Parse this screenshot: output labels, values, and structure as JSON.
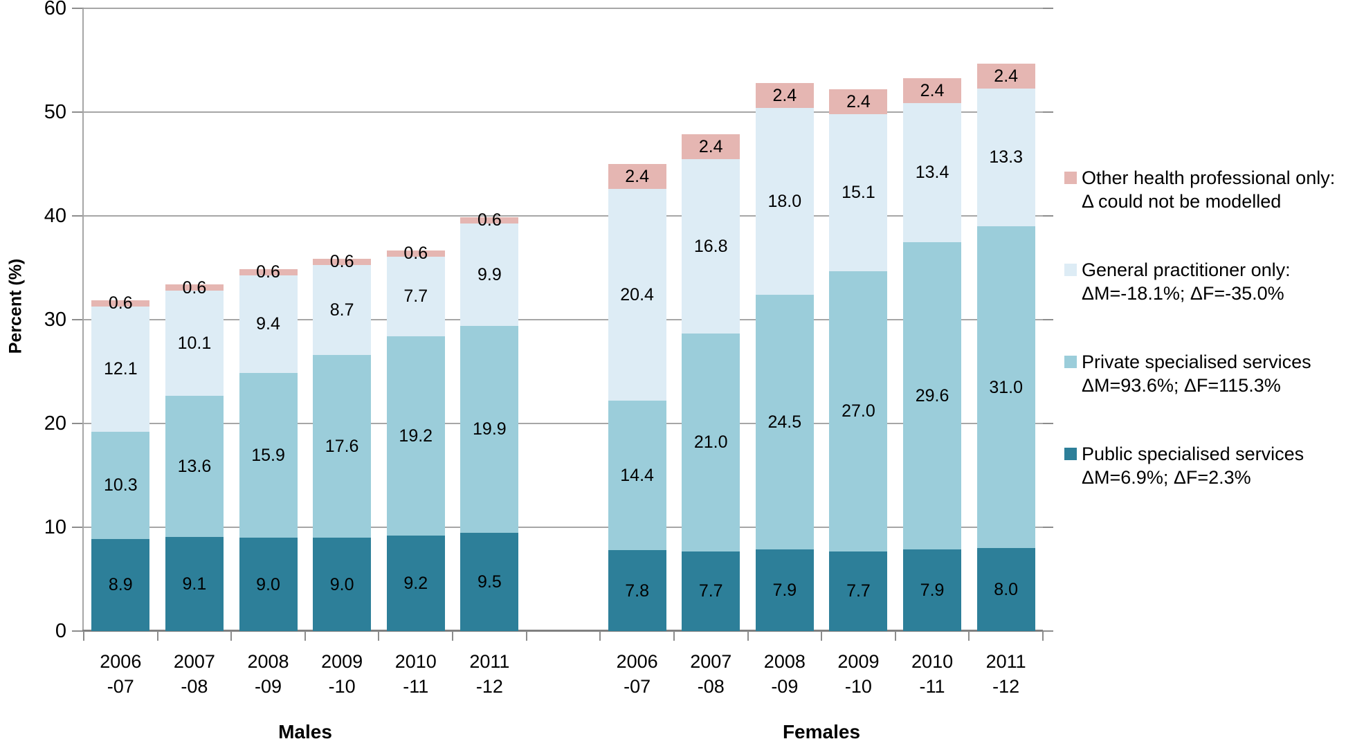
{
  "chart_data": {
    "type": "bar",
    "stacked": true,
    "ylabel": "Percent (%)",
    "ylim": [
      0,
      60
    ],
    "yticks": [
      0,
      10,
      20,
      30,
      40,
      50,
      60
    ],
    "grid": "horizontal",
    "legend_position": "right",
    "categories": [
      {
        "top": "2006",
        "bottom": "-07"
      },
      {
        "top": "2007",
        "bottom": "-08"
      },
      {
        "top": "2008",
        "bottom": "-09"
      },
      {
        "top": "2009",
        "bottom": "-10"
      },
      {
        "top": "2010",
        "bottom": "-11"
      },
      {
        "top": "2011",
        "bottom": "-12"
      }
    ],
    "groups": [
      {
        "label": "Males"
      },
      {
        "label": "Females"
      }
    ],
    "series": [
      {
        "name": "Public specialised services",
        "color": "#2d7f99",
        "males": [
          8.9,
          9.1,
          9.0,
          9.0,
          9.2,
          9.5
        ],
        "females": [
          7.8,
          7.7,
          7.9,
          7.7,
          7.9,
          8.0
        ]
      },
      {
        "name": "Private specialised services",
        "color": "#9bcdda",
        "males": [
          10.3,
          13.6,
          15.9,
          17.6,
          19.2,
          19.9
        ],
        "females": [
          14.4,
          21.0,
          24.5,
          27.0,
          29.6,
          31.0
        ]
      },
      {
        "name": "General practitioner only",
        "color": "#ddecf5",
        "males": [
          12.1,
          10.1,
          9.4,
          8.7,
          7.7,
          9.9
        ],
        "females": [
          20.4,
          16.8,
          18.0,
          15.1,
          13.4,
          13.3
        ]
      },
      {
        "name": "Other health professional only",
        "color": "#e5b6b2",
        "males": [
          0.6,
          0.6,
          0.6,
          0.6,
          0.6,
          0.6
        ],
        "females": [
          2.4,
          2.4,
          2.4,
          2.4,
          2.4,
          2.4
        ]
      }
    ],
    "legend": [
      {
        "color": "#e5b6b2",
        "line1": "Other health professional only:",
        "line2": "Δ could not be modelled"
      },
      {
        "color": "#ddecf5",
        "line1": "General practitioner only:",
        "line2": "ΔM=-18.1%; ΔF=-35.0%"
      },
      {
        "color": "#9bcdda",
        "line1": "Private specialised services",
        "line2": "ΔM=93.6%; ΔF=115.3%"
      },
      {
        "color": "#2d7f99",
        "line1": "Public specialised services",
        "line2": "ΔM=6.9%; ΔF=2.3%"
      }
    ]
  }
}
